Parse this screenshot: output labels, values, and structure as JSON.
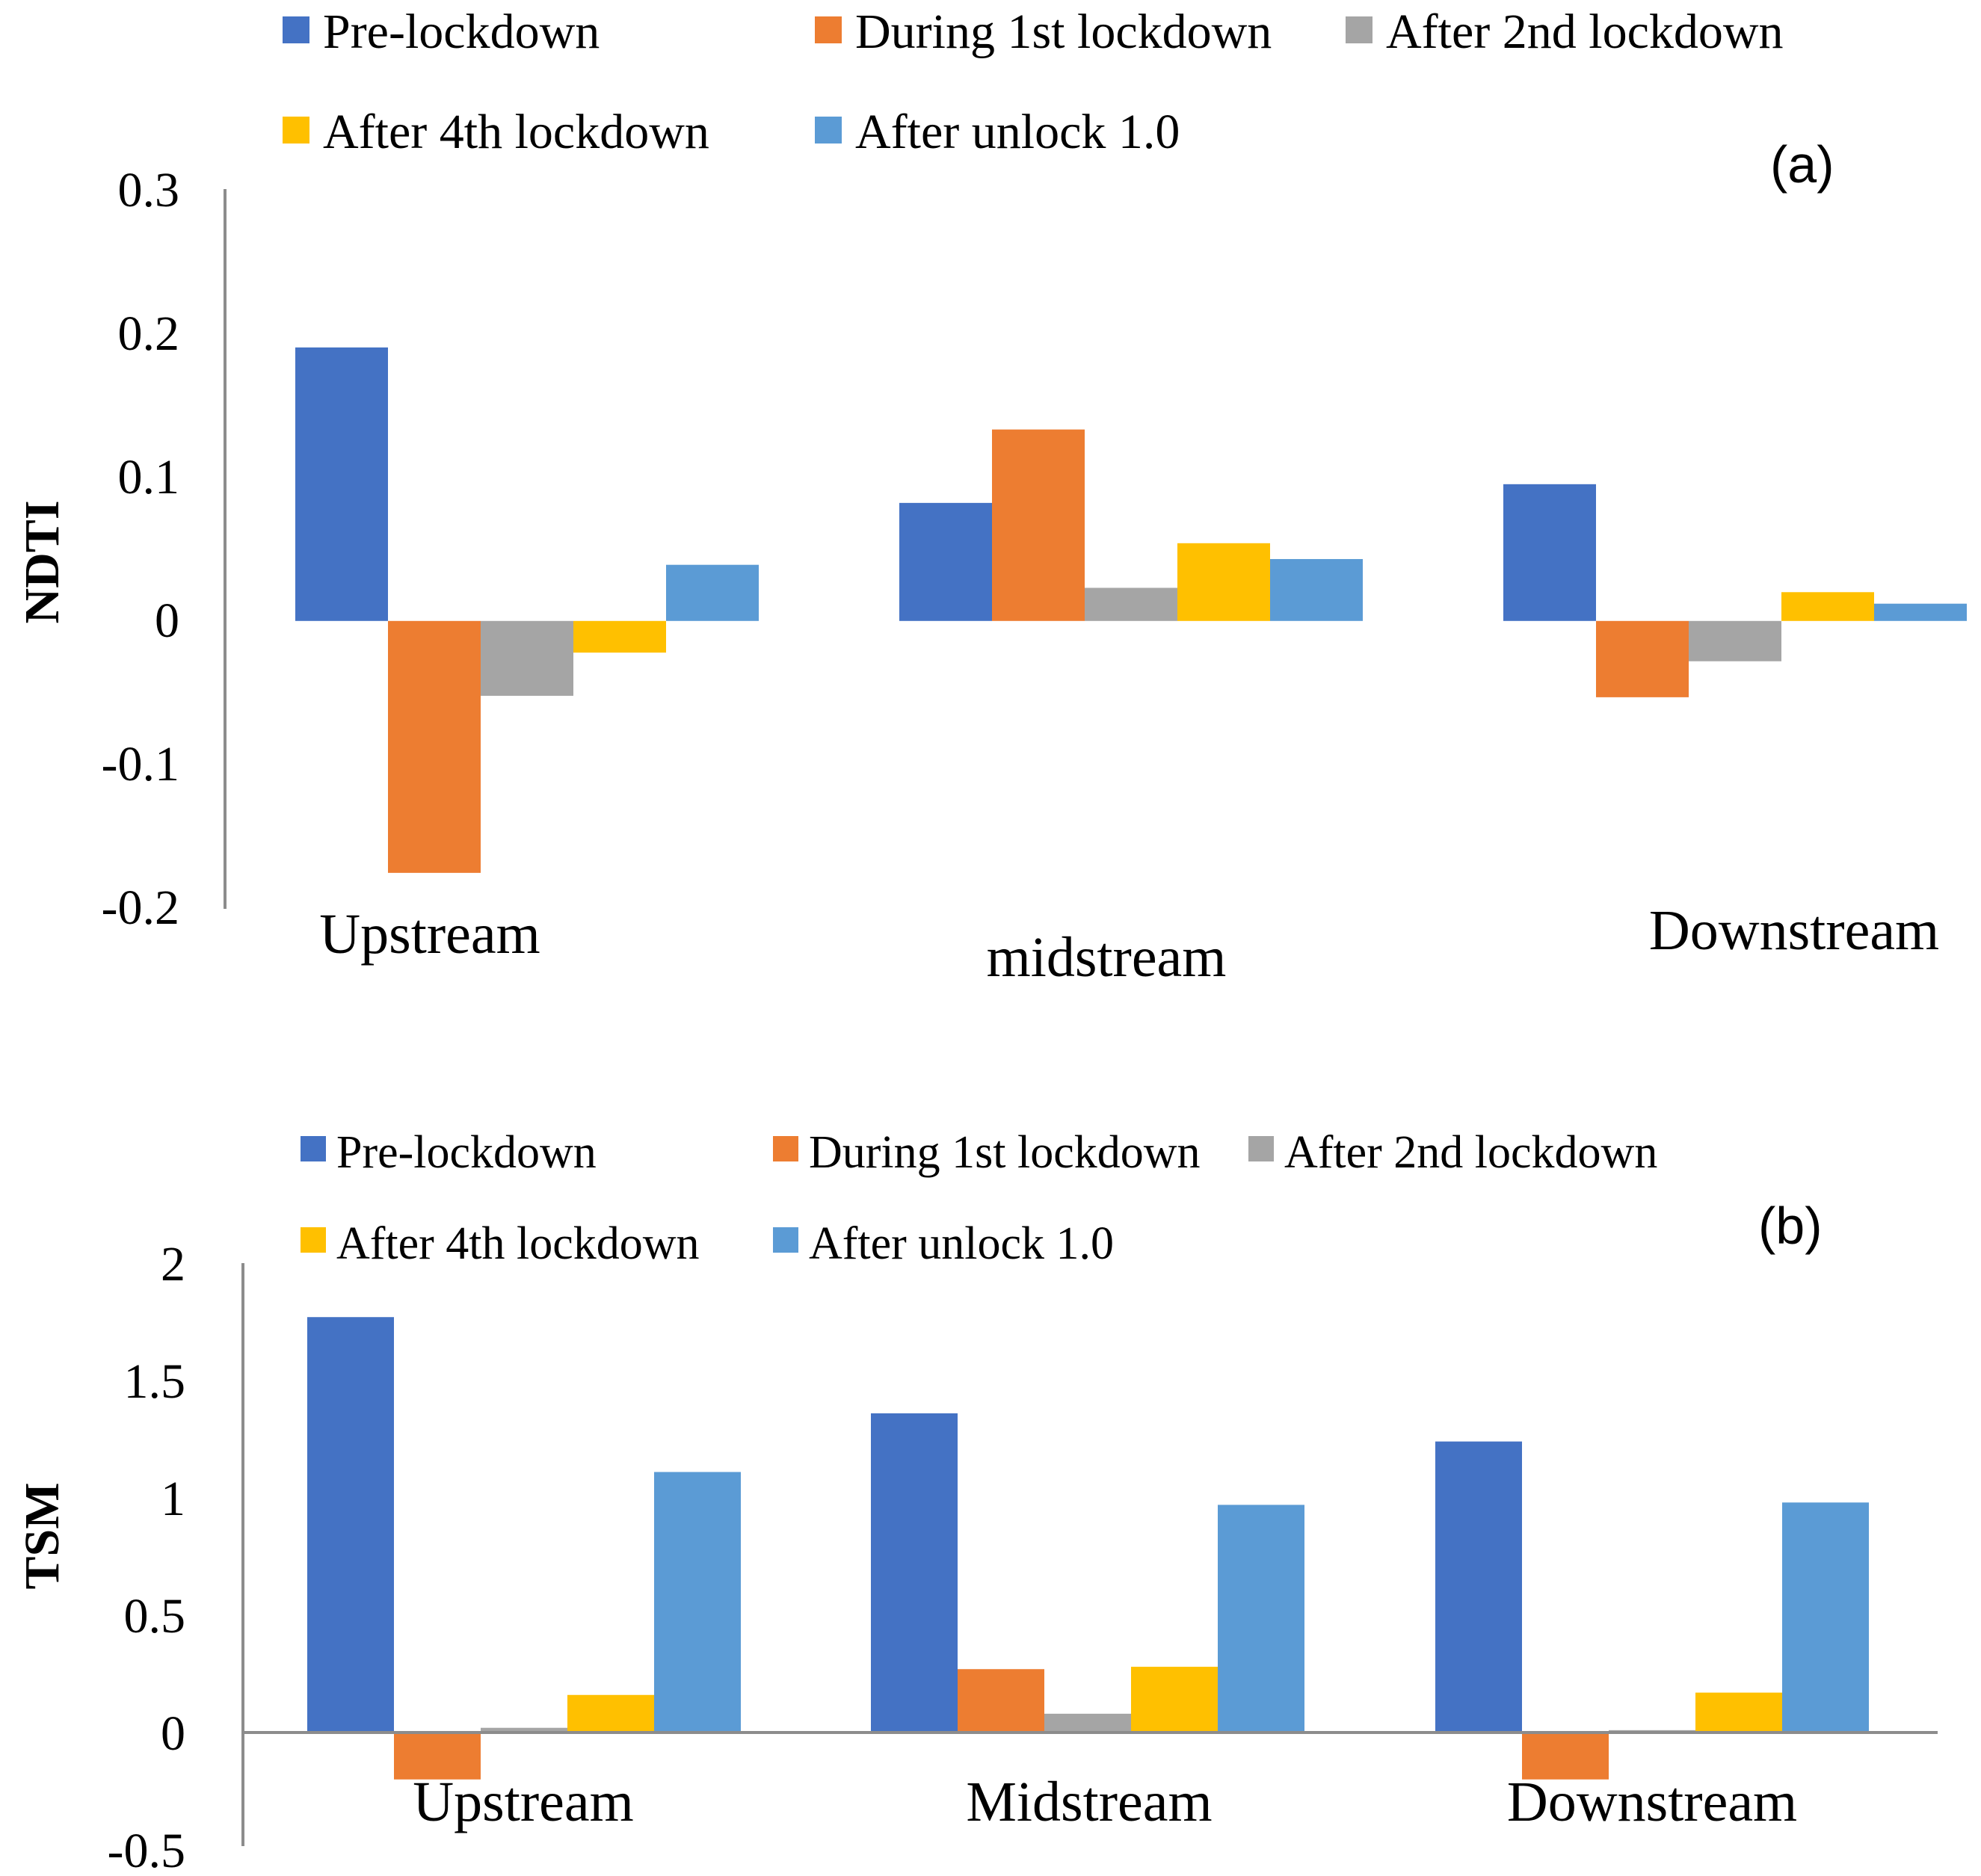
{
  "colors": {
    "Pre-lockdown": "#4472C4",
    "During 1st lockdown": "#ED7D31",
    "After 2nd lockdown": "#A5A5A5",
    "After 4th lockdown": "#FFC000",
    "After unlock 1.0": "#5B9BD5"
  },
  "chart_data": [
    {
      "type": "bar",
      "panel_label": "(a)",
      "ylabel": "NDTI",
      "xlabel": "",
      "categories": [
        "Upstream",
        "midstream",
        "Downstream"
      ],
      "ylim": [
        -0.2,
        0.3
      ],
      "yticks": [
        "0.3",
        "0.2",
        "0.1",
        "0",
        "-0.1",
        "-0.2"
      ],
      "ytick_values": [
        0.3,
        0.2,
        0.1,
        0,
        -0.1,
        -0.2
      ],
      "legend": [
        "Pre-lockdown",
        "During 1st lockdown",
        "After 2nd lockdown",
        "After 4th lockdown",
        "After unlock 1.0"
      ],
      "legend_position": "top",
      "grid": false,
      "series": [
        {
          "name": "Pre-lockdown",
          "values": [
            0.19,
            0.082,
            0.095
          ]
        },
        {
          "name": "During 1st lockdown",
          "values": [
            -0.175,
            0.133,
            -0.053
          ]
        },
        {
          "name": "After 2nd lockdown",
          "values": [
            -0.052,
            0.023,
            -0.028
          ]
        },
        {
          "name": "After 4th lockdown",
          "values": [
            -0.022,
            0.054,
            0.02
          ]
        },
        {
          "name": "After unlock 1.0",
          "values": [
            0.039,
            0.043,
            0.012
          ]
        }
      ]
    },
    {
      "type": "bar",
      "panel_label": "(b)",
      "ylabel": "TSM",
      "xlabel": "",
      "categories": [
        "Upstream",
        "Midstream",
        "Downstream"
      ],
      "ylim": [
        -0.5,
        2
      ],
      "yticks": [
        "2",
        "1.5",
        "1",
        "0.5",
        "0",
        "-0.5"
      ],
      "ytick_values": [
        2,
        1.5,
        1,
        0.5,
        0,
        -0.5
      ],
      "legend": [
        "Pre-lockdown",
        "During 1st lockdown",
        "After 2nd lockdown",
        "After 4th lockdown",
        "After unlock 1.0"
      ],
      "legend_position": "top",
      "grid": false,
      "series": [
        {
          "name": "Pre-lockdown",
          "values": [
            1.77,
            1.36,
            1.24
          ]
        },
        {
          "name": "During 1st lockdown",
          "values": [
            -0.2,
            0.27,
            -0.2
          ]
        },
        {
          "name": "After 2nd lockdown",
          "values": [
            0.02,
            0.08,
            0.01
          ]
        },
        {
          "name": "After 4th lockdown",
          "values": [
            0.16,
            0.28,
            0.17
          ]
        },
        {
          "name": "After unlock 1.0",
          "values": [
            1.11,
            0.97,
            0.98
          ]
        }
      ]
    }
  ]
}
